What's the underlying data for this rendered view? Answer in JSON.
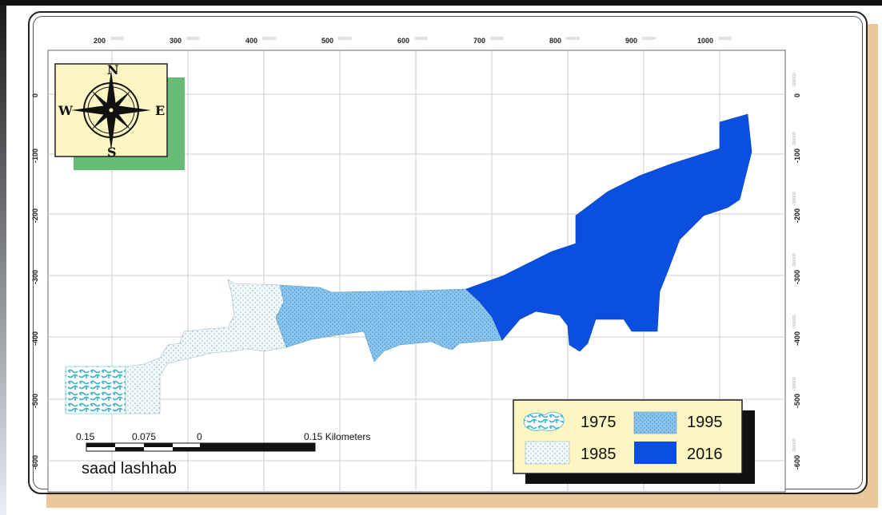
{
  "map": {
    "x_ticks": [
      {
        "value": "200",
        "minor": "000000"
      },
      {
        "value": "300",
        "minor": "000000"
      },
      {
        "value": "400",
        "minor": "000000"
      },
      {
        "value": "500",
        "minor": "000000"
      },
      {
        "value": "600",
        "minor": "000000"
      },
      {
        "value": "700",
        "minor": "000000"
      },
      {
        "value": "800",
        "minor": "000000"
      },
      {
        "value": "900",
        "minor": "000000"
      },
      {
        "value": "1000",
        "minor": "000000"
      }
    ],
    "y_ticks": [
      {
        "value": "0",
        "minor": "000000"
      },
      {
        "value": "-100",
        "minor": "000000"
      },
      {
        "value": "-200",
        "minor": "000000"
      },
      {
        "value": "-300",
        "minor": "000000"
      },
      {
        "value": "-400",
        "minor": "000000"
      },
      {
        "value": "-500",
        "minor": "000000"
      },
      {
        "value": "-600",
        "minor": "000000"
      }
    ]
  },
  "compass": {
    "n": "N",
    "s": "S",
    "e": "E",
    "w": "W"
  },
  "legend": {
    "items": [
      {
        "label": "1975",
        "color": "#5fc3cf"
      },
      {
        "label": "1995",
        "color": "#7fbde6"
      },
      {
        "label": "1985",
        "color": "#d8ecf0"
      },
      {
        "label": "2016",
        "color": "#0a4fe0"
      }
    ]
  },
  "scale_bar": {
    "labels": [
      "0.15",
      "0.075",
      "0",
      "0.15 Kilometers"
    ]
  },
  "author": "saad lashhab",
  "colors": {
    "zone_1975": "#5fc3cf",
    "zone_1985": "#d8ecf0",
    "zone_1995": "#7fbde6",
    "zone_2016": "#0a4fe0",
    "shadow": "#e9c99a",
    "compass_bg": "#fdf6c3",
    "compass_shadow": "#66bb77"
  }
}
